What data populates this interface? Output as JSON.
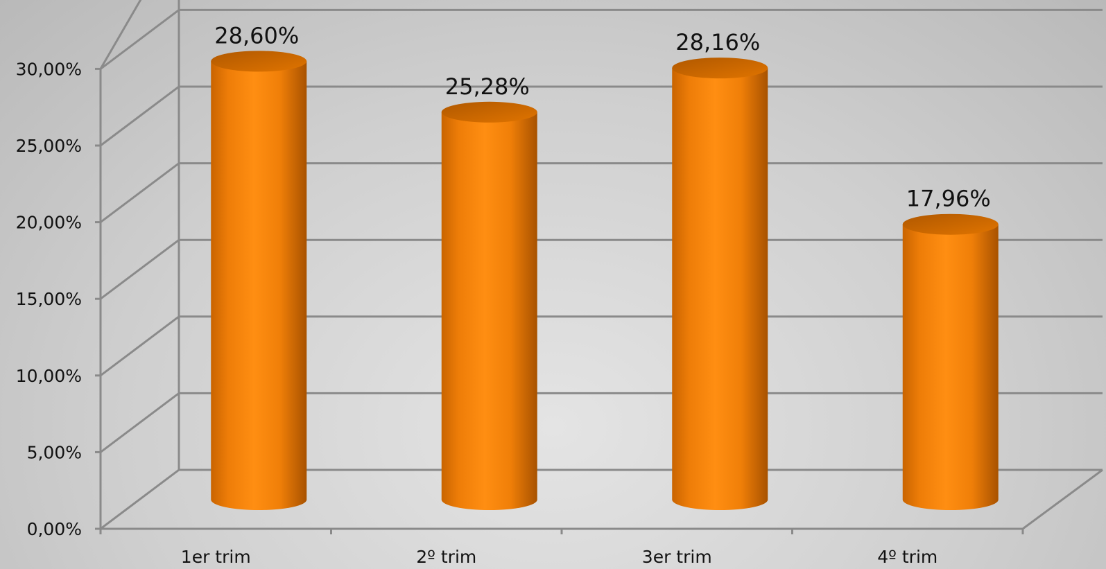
{
  "chart_data": {
    "type": "bar",
    "style": "3d-cylinder",
    "categories": [
      "1er trim",
      "2º trim",
      "3er trim",
      "4º trim"
    ],
    "values": [
      28.6,
      25.28,
      28.16,
      17.96
    ],
    "data_labels": [
      "28,60%",
      "25,28%",
      "28,16%",
      "17,96%"
    ],
    "y_ticks": [
      0,
      5,
      10,
      15,
      20,
      25,
      30
    ],
    "y_tick_labels": [
      "0,00%",
      "5,00%",
      "10,00%",
      "15,00%",
      "20,00%",
      "25,00%",
      "30,00%"
    ],
    "ylim": [
      0,
      30
    ],
    "grid": true,
    "legend": "none",
    "colors": {
      "bar": "#ff8a0d",
      "bar_dark": "#b85a00",
      "bar_top": "#d86f00",
      "grid": "#8a8a8a"
    }
  }
}
